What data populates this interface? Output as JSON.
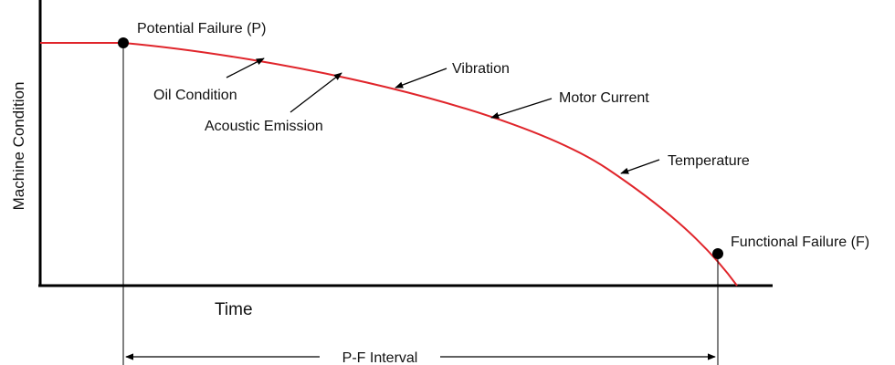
{
  "diagram": {
    "y_axis_label": "Machine Condition",
    "x_axis_label": "Time",
    "interval_label": "P-F Interval",
    "points": {
      "potential": "Potential Failure (P)",
      "functional": "Functional Failure (F)"
    },
    "indicators": [
      "Oil Condition",
      "Acoustic Emission",
      "Vibration",
      "Motor Current",
      "Temperature"
    ],
    "colors": {
      "curve": "#e0252b",
      "ink": "#000000"
    }
  }
}
